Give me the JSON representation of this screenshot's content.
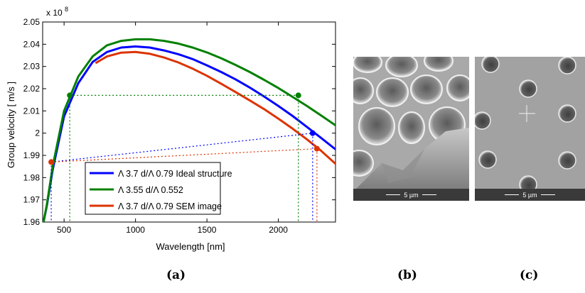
{
  "chart_data": {
    "type": "line",
    "xlabel": "Wavelength [nm]",
    "ylabel": "Group velocity [ m/s ]",
    "y_multiplier_label": "x 10",
    "y_multiplier_exponent": "8",
    "xlim": [
      350,
      2400
    ],
    "ylim": [
      1.96,
      2.05
    ],
    "x_ticks": [
      500,
      1000,
      1500,
      2000
    ],
    "x_tick_labels": [
      "500",
      "1000",
      "1500",
      "2000"
    ],
    "y_ticks": [
      1.96,
      1.97,
      1.98,
      1.99,
      2.0,
      2.01,
      2.02,
      2.03,
      2.04,
      2.05
    ],
    "y_tick_labels": [
      "1.96",
      "1.97",
      "1.98",
      "1.99",
      "2",
      "2.01",
      "2.02",
      "2.03",
      "2.04",
      "2.05"
    ],
    "grid": false,
    "legend_position": "bottom-left",
    "series": [
      {
        "name": "Λ 3.7 d/Λ 0.79 Ideal structure",
        "color": "#0000ff",
        "x": [
          350,
          380,
          420,
          500,
          600,
          700,
          800,
          900,
          1000,
          1100,
          1200,
          1300,
          1400,
          1500,
          1600,
          1700,
          1800,
          1900,
          2000,
          2100,
          2200,
          2300,
          2400
        ],
        "y": [
          1.958,
          1.9675,
          1.9835,
          2.0075,
          2.0225,
          2.032,
          2.0365,
          2.0385,
          2.039,
          2.0385,
          2.0372,
          2.0355,
          2.0333,
          2.0305,
          2.0275,
          2.0242,
          2.0205,
          2.0165,
          2.0122,
          2.0077,
          2.0028,
          1.9978,
          1.9927
        ]
      },
      {
        "name": "Λ 3.55 d/Λ 0.552",
        "color": "#008000",
        "x": [
          350,
          380,
          420,
          500,
          600,
          700,
          800,
          900,
          1000,
          1100,
          1200,
          1300,
          1400,
          1500,
          1600,
          1700,
          1800,
          1900,
          2000,
          2100,
          2200,
          2300,
          2400
        ],
        "y": [
          1.958,
          1.968,
          1.985,
          2.01,
          2.0255,
          2.0345,
          2.0395,
          2.0415,
          2.0422,
          2.0422,
          2.0415,
          2.0403,
          2.0385,
          2.0363,
          2.0337,
          2.0307,
          2.0275,
          2.024,
          2.0203,
          2.0163,
          2.0122,
          2.0079,
          2.0035
        ]
      },
      {
        "name": "Λ 3.7 d/Λ 0.79 SEM image",
        "color": "#dd3300",
        "x": [
          720,
          800,
          900,
          1000,
          1100,
          1200,
          1300,
          1400,
          1500,
          1600,
          1700,
          1800,
          1900,
          2000,
          2100,
          2200,
          2300,
          2400
        ],
        "y": [
          2.0315,
          2.0345,
          2.0362,
          2.0365,
          2.0357,
          2.034,
          2.0318,
          2.029,
          2.0258,
          2.0222,
          2.0185,
          2.0147,
          2.0108,
          2.0065,
          2.002,
          1.9972,
          1.992,
          1.9862
        ]
      }
    ],
    "markers": [
      {
        "x": 540,
        "y": 2.017,
        "color": "#008000"
      },
      {
        "x": 2140,
        "y": 2.017,
        "color": "#008000"
      },
      {
        "x": 2240,
        "y": 2.0,
        "color": "#0000ff"
      },
      {
        "x": 410,
        "y": 1.987,
        "color": "#dd3300"
      },
      {
        "x": 2270,
        "y": 1.993,
        "color": "#dd3300"
      }
    ]
  },
  "panels": {
    "a_caption": "(a)",
    "b_caption": "(b)",
    "c_caption": "(c)",
    "b_scale_text": "5 µm",
    "c_scale_text": "5 µm"
  }
}
